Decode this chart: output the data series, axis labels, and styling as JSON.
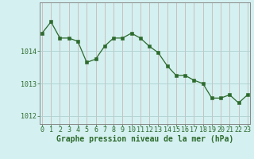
{
  "x": [
    0,
    1,
    2,
    3,
    4,
    5,
    6,
    7,
    8,
    9,
    10,
    11,
    12,
    13,
    14,
    15,
    16,
    17,
    18,
    19,
    20,
    21,
    22,
    23
  ],
  "y": [
    1014.55,
    1014.9,
    1014.4,
    1014.4,
    1014.3,
    1013.65,
    1013.75,
    1014.15,
    1014.4,
    1014.4,
    1014.55,
    1014.4,
    1014.15,
    1013.95,
    1013.55,
    1013.25,
    1013.25,
    1013.1,
    1013.0,
    1012.55,
    1012.55,
    1012.65,
    1012.4,
    1012.65
  ],
  "line_color": "#2d6a2d",
  "marker_color": "#2d6a2d",
  "bg_color": "#d4f0f0",
  "vgrid_color": "#c8b8b8",
  "hgrid_color": "#b0d0d0",
  "axis_color": "#2d6a2d",
  "xlabel": "Graphe pression niveau de la mer (hPa)",
  "xlabel_fontsize": 7.0,
  "tick_fontsize": 6.0,
  "ylim": [
    1011.75,
    1015.5
  ],
  "yticks": [
    1012,
    1013,
    1014
  ],
  "xticks": [
    0,
    1,
    2,
    3,
    4,
    5,
    6,
    7,
    8,
    9,
    10,
    11,
    12,
    13,
    14,
    15,
    16,
    17,
    18,
    19,
    20,
    21,
    22,
    23
  ],
  "xlim": [
    -0.3,
    23.3
  ]
}
